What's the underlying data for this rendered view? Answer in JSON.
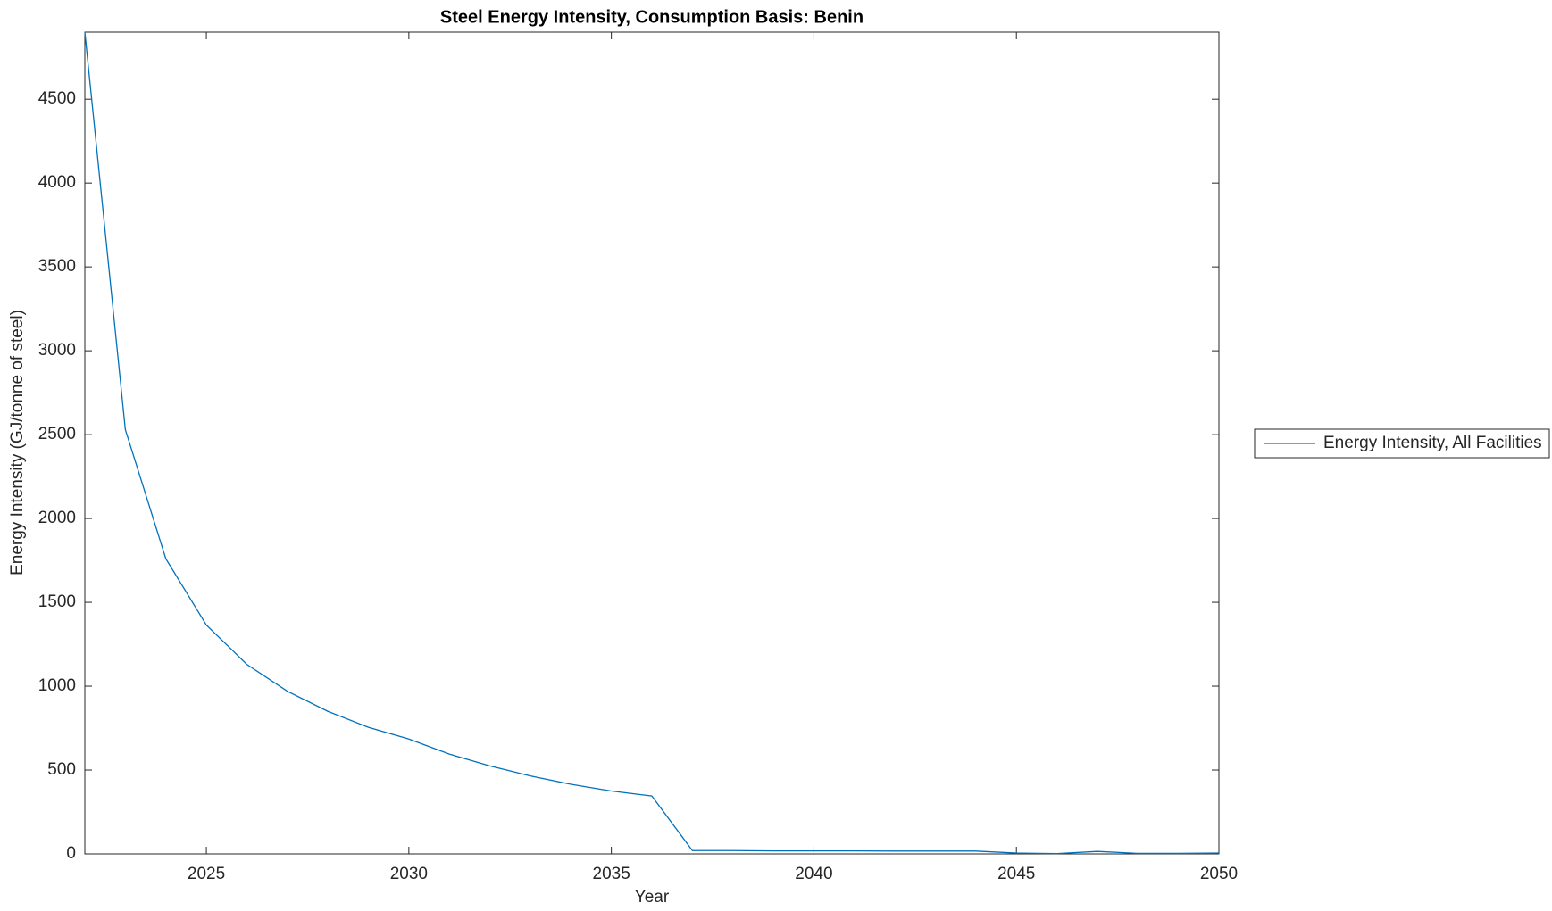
{
  "chart_data": {
    "type": "line",
    "title": "Steel Energy Intensity, Consumption Basis: Benin",
    "xlabel": "Year",
    "ylabel": "Energy Intensity (GJ/tonne of steel)",
    "x": [
      2022,
      2023,
      2024,
      2025,
      2026,
      2027,
      2028,
      2029,
      2030,
      2031,
      2032,
      2033,
      2034,
      2035,
      2036,
      2037,
      2038,
      2039,
      2040,
      2041,
      2042,
      2043,
      2044,
      2045,
      2046,
      2047,
      2048,
      2049,
      2050
    ],
    "series": [
      {
        "name": "Energy Intensity, All Facilities",
        "color": "#0072bd",
        "values": [
          4900,
          2530,
          1760,
          1365,
          1130,
          970,
          850,
          755,
          685,
          595,
          525,
          465,
          415,
          375,
          345,
          20,
          20,
          18,
          18,
          18,
          17,
          17,
          17,
          5,
          2,
          15,
          3,
          3,
          5
        ]
      }
    ],
    "xlim": [
      2022,
      2050
    ],
    "xticks": [
      2025,
      2030,
      2035,
      2040,
      2045,
      2050
    ],
    "ylim": [
      0,
      4900
    ],
    "yticks": [
      0,
      500,
      1000,
      1500,
      2000,
      2500,
      3000,
      3500,
      4000,
      4500
    ],
    "legend": "outside-right"
  }
}
